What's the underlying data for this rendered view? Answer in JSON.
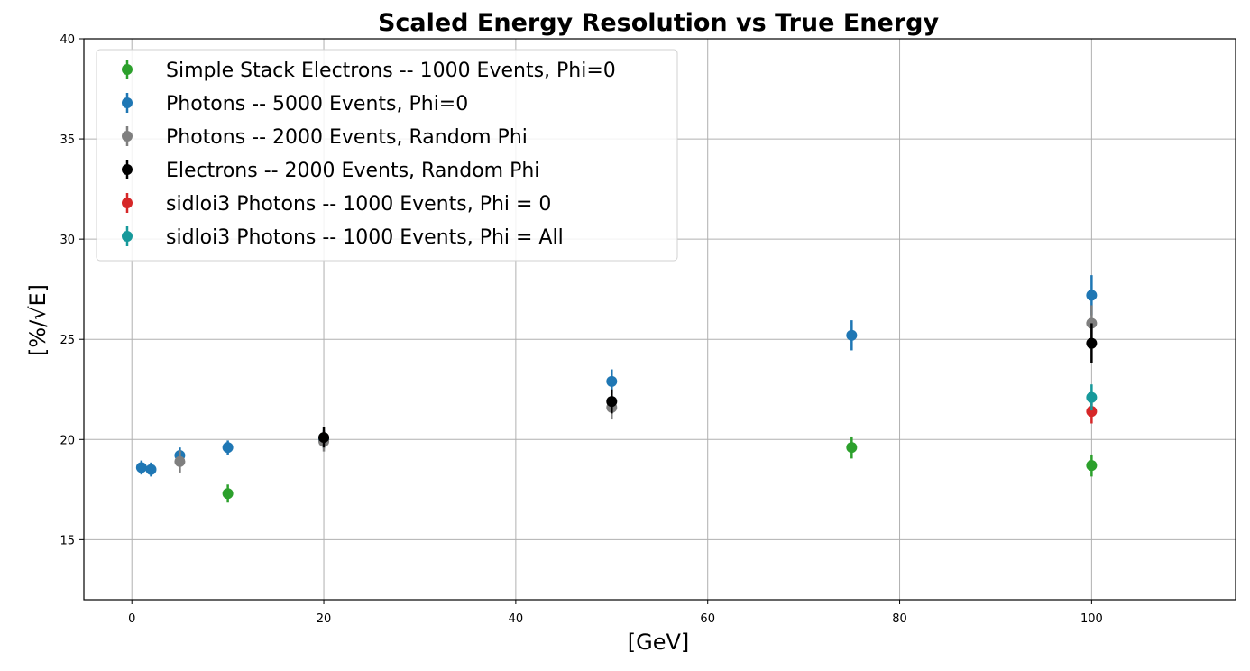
{
  "chart_data": {
    "type": "scatter",
    "title": "Scaled Energy Resolution vs True Energy",
    "xlabel": "[GeV]",
    "ylabel": "[%/√E]",
    "xlim": [
      -5,
      115
    ],
    "ylim": [
      12,
      40
    ],
    "xticks": [
      0,
      20,
      40,
      60,
      80,
      100
    ],
    "yticks": [
      15,
      20,
      25,
      30,
      35,
      40
    ],
    "grid": true,
    "legend_position": "upper-left",
    "series": [
      {
        "name": "Simple Stack Electrons -- 1000 Events, Phi=0",
        "color": "#2ca02c",
        "points": [
          {
            "x": 10,
            "y": 17.3,
            "err": 0.45
          },
          {
            "x": 75,
            "y": 19.6,
            "err": 0.55
          },
          {
            "x": 100,
            "y": 18.7,
            "err": 0.55
          }
        ]
      },
      {
        "name": "Photons -- 5000 Events, Phi=0",
        "color": "#1f77b4",
        "points": [
          {
            "x": 1,
            "y": 18.6,
            "err": 0.35
          },
          {
            "x": 2,
            "y": 18.5,
            "err": 0.35
          },
          {
            "x": 5,
            "y": 19.2,
            "err": 0.4
          },
          {
            "x": 10,
            "y": 19.6,
            "err": 0.35
          },
          {
            "x": 20,
            "y": 20.0,
            "err": 0.45
          },
          {
            "x": 50,
            "y": 22.9,
            "err": 0.6
          },
          {
            "x": 75,
            "y": 25.2,
            "err": 0.75
          },
          {
            "x": 100,
            "y": 27.2,
            "err": 1.0
          }
        ]
      },
      {
        "name": "Photons -- 2000 Events, Random Phi",
        "color": "#7f7f7f",
        "points": [
          {
            "x": 5,
            "y": 18.9,
            "err": 0.55
          },
          {
            "x": 20,
            "y": 19.9,
            "err": 0.5
          },
          {
            "x": 50,
            "y": 21.6,
            "err": 0.6
          },
          {
            "x": 100,
            "y": 25.8,
            "err": 0.9
          }
        ]
      },
      {
        "name": "Electrons -- 2000 Events, Random Phi",
        "color": "#000000",
        "points": [
          {
            "x": 20,
            "y": 20.1,
            "err": 0.5
          },
          {
            "x": 50,
            "y": 21.9,
            "err": 0.6
          },
          {
            "x": 100,
            "y": 24.8,
            "err": 1.0
          }
        ]
      },
      {
        "name": "sidloi3 Photons -- 1000 Events, Phi = 0",
        "color": "#d62728",
        "points": [
          {
            "x": 100,
            "y": 21.4,
            "err": 0.6
          }
        ]
      },
      {
        "name": "sidloi3 Photons -- 1000 Events, Phi = All",
        "color": "#17999b",
        "points": [
          {
            "x": 100,
            "y": 22.1,
            "err": 0.65
          }
        ]
      }
    ]
  }
}
